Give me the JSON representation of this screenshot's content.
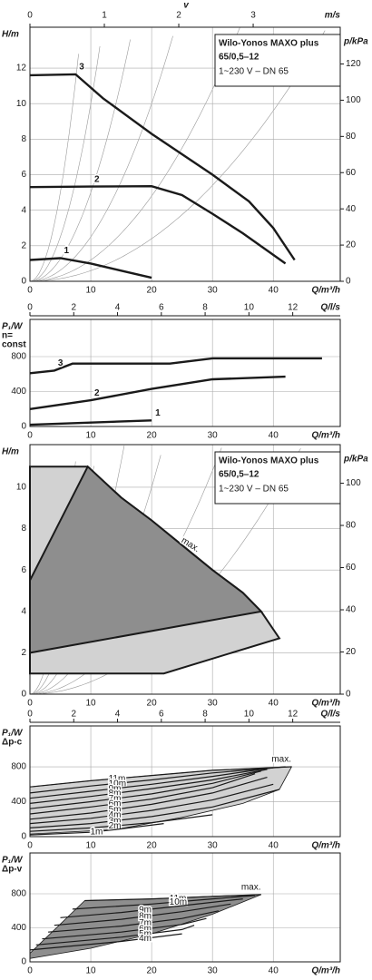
{
  "chart_data": [
    {
      "type": "line",
      "title": "Wilo-Yonos MAXO plus",
      "model": "65/0,5–12",
      "subtitle": "1~230 V – DN 65",
      "ylabel": "H/m",
      "ylim": [
        0,
        14.3
      ],
      "yticks": [
        0,
        2,
        4,
        6,
        8,
        10,
        12
      ],
      "y2label": "p/kPa",
      "y2lim": [
        0,
        140.3
      ],
      "y2ticks": [
        0,
        20,
        40,
        60,
        80,
        100,
        120
      ],
      "xlabel": "Q/m³/h",
      "xlim": [
        0,
        51
      ],
      "xticks": [
        0,
        10,
        20,
        30,
        40
      ],
      "grid": true,
      "vaxis": {
        "label": "v",
        "unit": "m/s",
        "lim": [
          0,
          4.17
        ],
        "ticks": [
          0,
          1,
          2,
          3
        ]
      },
      "flow_axis": {
        "label": "Q/l/s",
        "lim": [
          0,
          14.17
        ],
        "ticks": [
          0,
          2,
          4,
          6,
          8,
          10,
          12
        ]
      },
      "series": [
        {
          "name": "3",
          "color": "#1a1a1a",
          "x": [
            0,
            7.5,
            12,
            20,
            30,
            36,
            40,
            43.5
          ],
          "values": [
            11.6,
            11.65,
            10.3,
            8.3,
            6,
            4.5,
            3,
            1.2
          ]
        },
        {
          "name": "2",
          "color": "#1a1a1a",
          "x": [
            0,
            10,
            20,
            25,
            30,
            35,
            42
          ],
          "values": [
            5.3,
            5.33,
            5.35,
            4.85,
            3.8,
            2.7,
            1
          ]
        },
        {
          "name": "1",
          "color": "#1a1a1a",
          "x": [
            0,
            5,
            10,
            15,
            20
          ],
          "values": [
            1.2,
            1.3,
            1.0,
            0.6,
            0.2
          ]
        }
      ]
    },
    {
      "type": "line",
      "ylabel": "P₁/W",
      "ylabel2": "n=",
      "ylabel3": "const",
      "ylim": [
        0,
        1226
      ],
      "yticks": [
        0,
        400,
        800
      ],
      "xlabel": "Q/m³/h",
      "xlim": [
        0,
        51
      ],
      "xticks": [
        0,
        10,
        20,
        30,
        40
      ],
      "grid": true,
      "series": [
        {
          "name": "3",
          "color": "#1a1a1a",
          "x": [
            0,
            4,
            7,
            23,
            30,
            48
          ],
          "values": [
            610,
            640,
            720,
            720,
            780,
            780
          ]
        },
        {
          "name": "2",
          "color": "#1a1a1a",
          "x": [
            0,
            10,
            20,
            30,
            42
          ],
          "values": [
            200,
            300,
            430,
            540,
            570
          ]
        },
        {
          "name": "1",
          "color": "#1a1a1a",
          "x": [
            0,
            20
          ],
          "values": [
            20,
            70
          ]
        }
      ]
    },
    {
      "type": "area",
      "title": "Wilo-Yonos MAXO plus",
      "model": "65/0,5–12",
      "subtitle": "1~230 V – DN 65",
      "ylabel": "H/m",
      "ylim": [
        0,
        12.06
      ],
      "yticks": [
        0,
        2,
        4,
        6,
        8,
        10
      ],
      "y2label": "p/kPa",
      "y2lim": [
        0,
        118.3
      ],
      "y2ticks": [
        0,
        20,
        40,
        60,
        80,
        100
      ],
      "xlabel": "Q/m³/h",
      "xlim": [
        0,
        51
      ],
      "xticks": [
        0,
        10,
        20,
        30,
        40
      ],
      "grid": true,
      "flow_axis": {
        "label": "Q/l/s",
        "lim": [
          0,
          14.17
        ],
        "ticks": [
          0,
          2,
          4,
          6,
          8,
          10,
          12
        ]
      },
      "annotation": "max.",
      "regions": [
        {
          "color": "#d2d2d2",
          "x": [
            0,
            9.5,
            15,
            20,
            25,
            30,
            35,
            38,
            41,
            22,
            0
          ],
          "values": [
            11,
            11,
            9.5,
            8.4,
            7.2,
            6,
            4.9,
            4,
            2.7,
            1,
            1
          ]
        },
        {
          "color": "#8e8e8e",
          "x": [
            0,
            9.5,
            15,
            20,
            25,
            30,
            35,
            38,
            0
          ],
          "values": [
            5.5,
            11,
            9.5,
            8.4,
            7.2,
            6,
            4.9,
            4,
            2
          ]
        }
      ]
    },
    {
      "type": "line",
      "ylabel": "P₁/W",
      "ylabel2": "Δp-c",
      "ylim": [
        0,
        1268
      ],
      "yticks": [
        0,
        400,
        800
      ],
      "xlabel": "Q/m³/h",
      "xlim": [
        0,
        51
      ],
      "xticks": [
        0,
        10,
        20,
        30,
        40
      ],
      "grid": true,
      "annotation": "max.",
      "regions": [
        {
          "color": "#d2d2d2",
          "x": [
            0,
            0,
            10,
            20,
            30,
            43,
            41,
            35,
            25,
            14
          ],
          "values": [
            30,
            570,
            640,
            700,
            760,
            800,
            540,
            380,
            220,
            80
          ]
        }
      ],
      "series": [
        {
          "name": "11m",
          "color": "#1a1a1a",
          "x": [
            0,
            10,
            20,
            30,
            43
          ],
          "values": [
            570,
            640,
            700,
            760,
            800
          ]
        },
        {
          "name": "10m",
          "color": "#1a1a1a",
          "x": [
            0,
            10,
            20,
            30,
            42
          ],
          "values": [
            500,
            580,
            650,
            730,
            800
          ]
        },
        {
          "name": "9m",
          "color": "#1a1a1a",
          "x": [
            0,
            10,
            20,
            30,
            40
          ],
          "values": [
            440,
            520,
            600,
            690,
            790
          ]
        },
        {
          "name": "8m",
          "color": "#1a1a1a",
          "x": [
            0,
            10,
            20,
            30,
            39
          ],
          "values": [
            380,
            460,
            550,
            650,
            770
          ]
        },
        {
          "name": "7m",
          "color": "#1a1a1a",
          "x": [
            0,
            10,
            20,
            30,
            38
          ],
          "values": [
            320,
            400,
            490,
            610,
            750
          ]
        },
        {
          "name": "6m",
          "color": "#1a1a1a",
          "x": [
            0,
            10,
            20,
            30,
            37
          ],
          "values": [
            260,
            340,
            430,
            560,
            720
          ]
        },
        {
          "name": "5m",
          "color": "#1a1a1a",
          "x": [
            0,
            10,
            20,
            30,
            39
          ],
          "values": [
            200,
            270,
            370,
            500,
            680
          ]
        },
        {
          "name": "4m",
          "color": "#1a1a1a",
          "x": [
            0,
            10,
            20,
            30,
            40
          ],
          "values": [
            150,
            210,
            300,
            420,
            600
          ]
        },
        {
          "name": "3m",
          "color": "#1a1a1a",
          "x": [
            0,
            10,
            20,
            30,
            41
          ],
          "values": [
            100,
            150,
            230,
            340,
            540
          ]
        },
        {
          "name": "2m",
          "color": "#1a1a1a",
          "x": [
            0,
            10,
            20,
            30
          ],
          "values": [
            60,
            100,
            160,
            250
          ]
        },
        {
          "name": "1m",
          "color": "#1a1a1a",
          "x": [
            0,
            10,
            14,
            22
          ],
          "values": [
            20,
            50,
            80,
            150
          ]
        }
      ]
    },
    {
      "type": "line",
      "ylabel": "P₁/W",
      "ylabel2": "Δp-v",
      "ylim": [
        0,
        1280
      ],
      "yticks": [
        0,
        400,
        800
      ],
      "xlabel": "Q/m³/h",
      "xlim": [
        0,
        51
      ],
      "xticks": [
        0,
        10,
        20,
        30,
        40
      ],
      "grid": true,
      "annotation": "max.",
      "regions": [
        {
          "color": "#8e8e8e",
          "x": [
            0,
            0,
            9,
            20,
            30,
            38,
            30,
            20,
            10
          ],
          "values": [
            40,
            100,
            720,
            740,
            770,
            790,
            560,
            330,
            160
          ]
        }
      ],
      "series": [
        {
          "name": "11m",
          "color": "#1a1a1a",
          "x": [
            9,
            20,
            30,
            38
          ],
          "values": [
            720,
            740,
            770,
            790
          ]
        },
        {
          "name": "10m",
          "color": "#1a1a1a",
          "x": [
            7,
            20,
            30,
            37
          ],
          "values": [
            620,
            680,
            740,
            780
          ]
        },
        {
          "name": "9m",
          "color": "#1a1a1a",
          "x": [
            5,
            15,
            25,
            35
          ],
          "values": [
            520,
            580,
            660,
            740
          ]
        },
        {
          "name": "8m",
          "color": "#1a1a1a",
          "x": [
            4,
            15,
            25,
            33
          ],
          "values": [
            430,
            500,
            590,
            680
          ]
        },
        {
          "name": "7m",
          "color": "#1a1a1a",
          "x": [
            3,
            15,
            25,
            31
          ],
          "values": [
            350,
            420,
            510,
            600
          ]
        },
        {
          "name": "6m",
          "color": "#1a1a1a",
          "x": [
            2,
            15,
            25,
            29
          ],
          "values": [
            270,
            350,
            440,
            510
          ]
        },
        {
          "name": "5m",
          "color": "#1a1a1a",
          "x": [
            1,
            15,
            25,
            27
          ],
          "values": [
            200,
            290,
            380,
            430
          ]
        },
        {
          "name": "4m",
          "color": "#1a1a1a",
          "x": [
            0,
            15,
            25
          ],
          "values": [
            140,
            240,
            330
          ]
        }
      ]
    }
  ]
}
